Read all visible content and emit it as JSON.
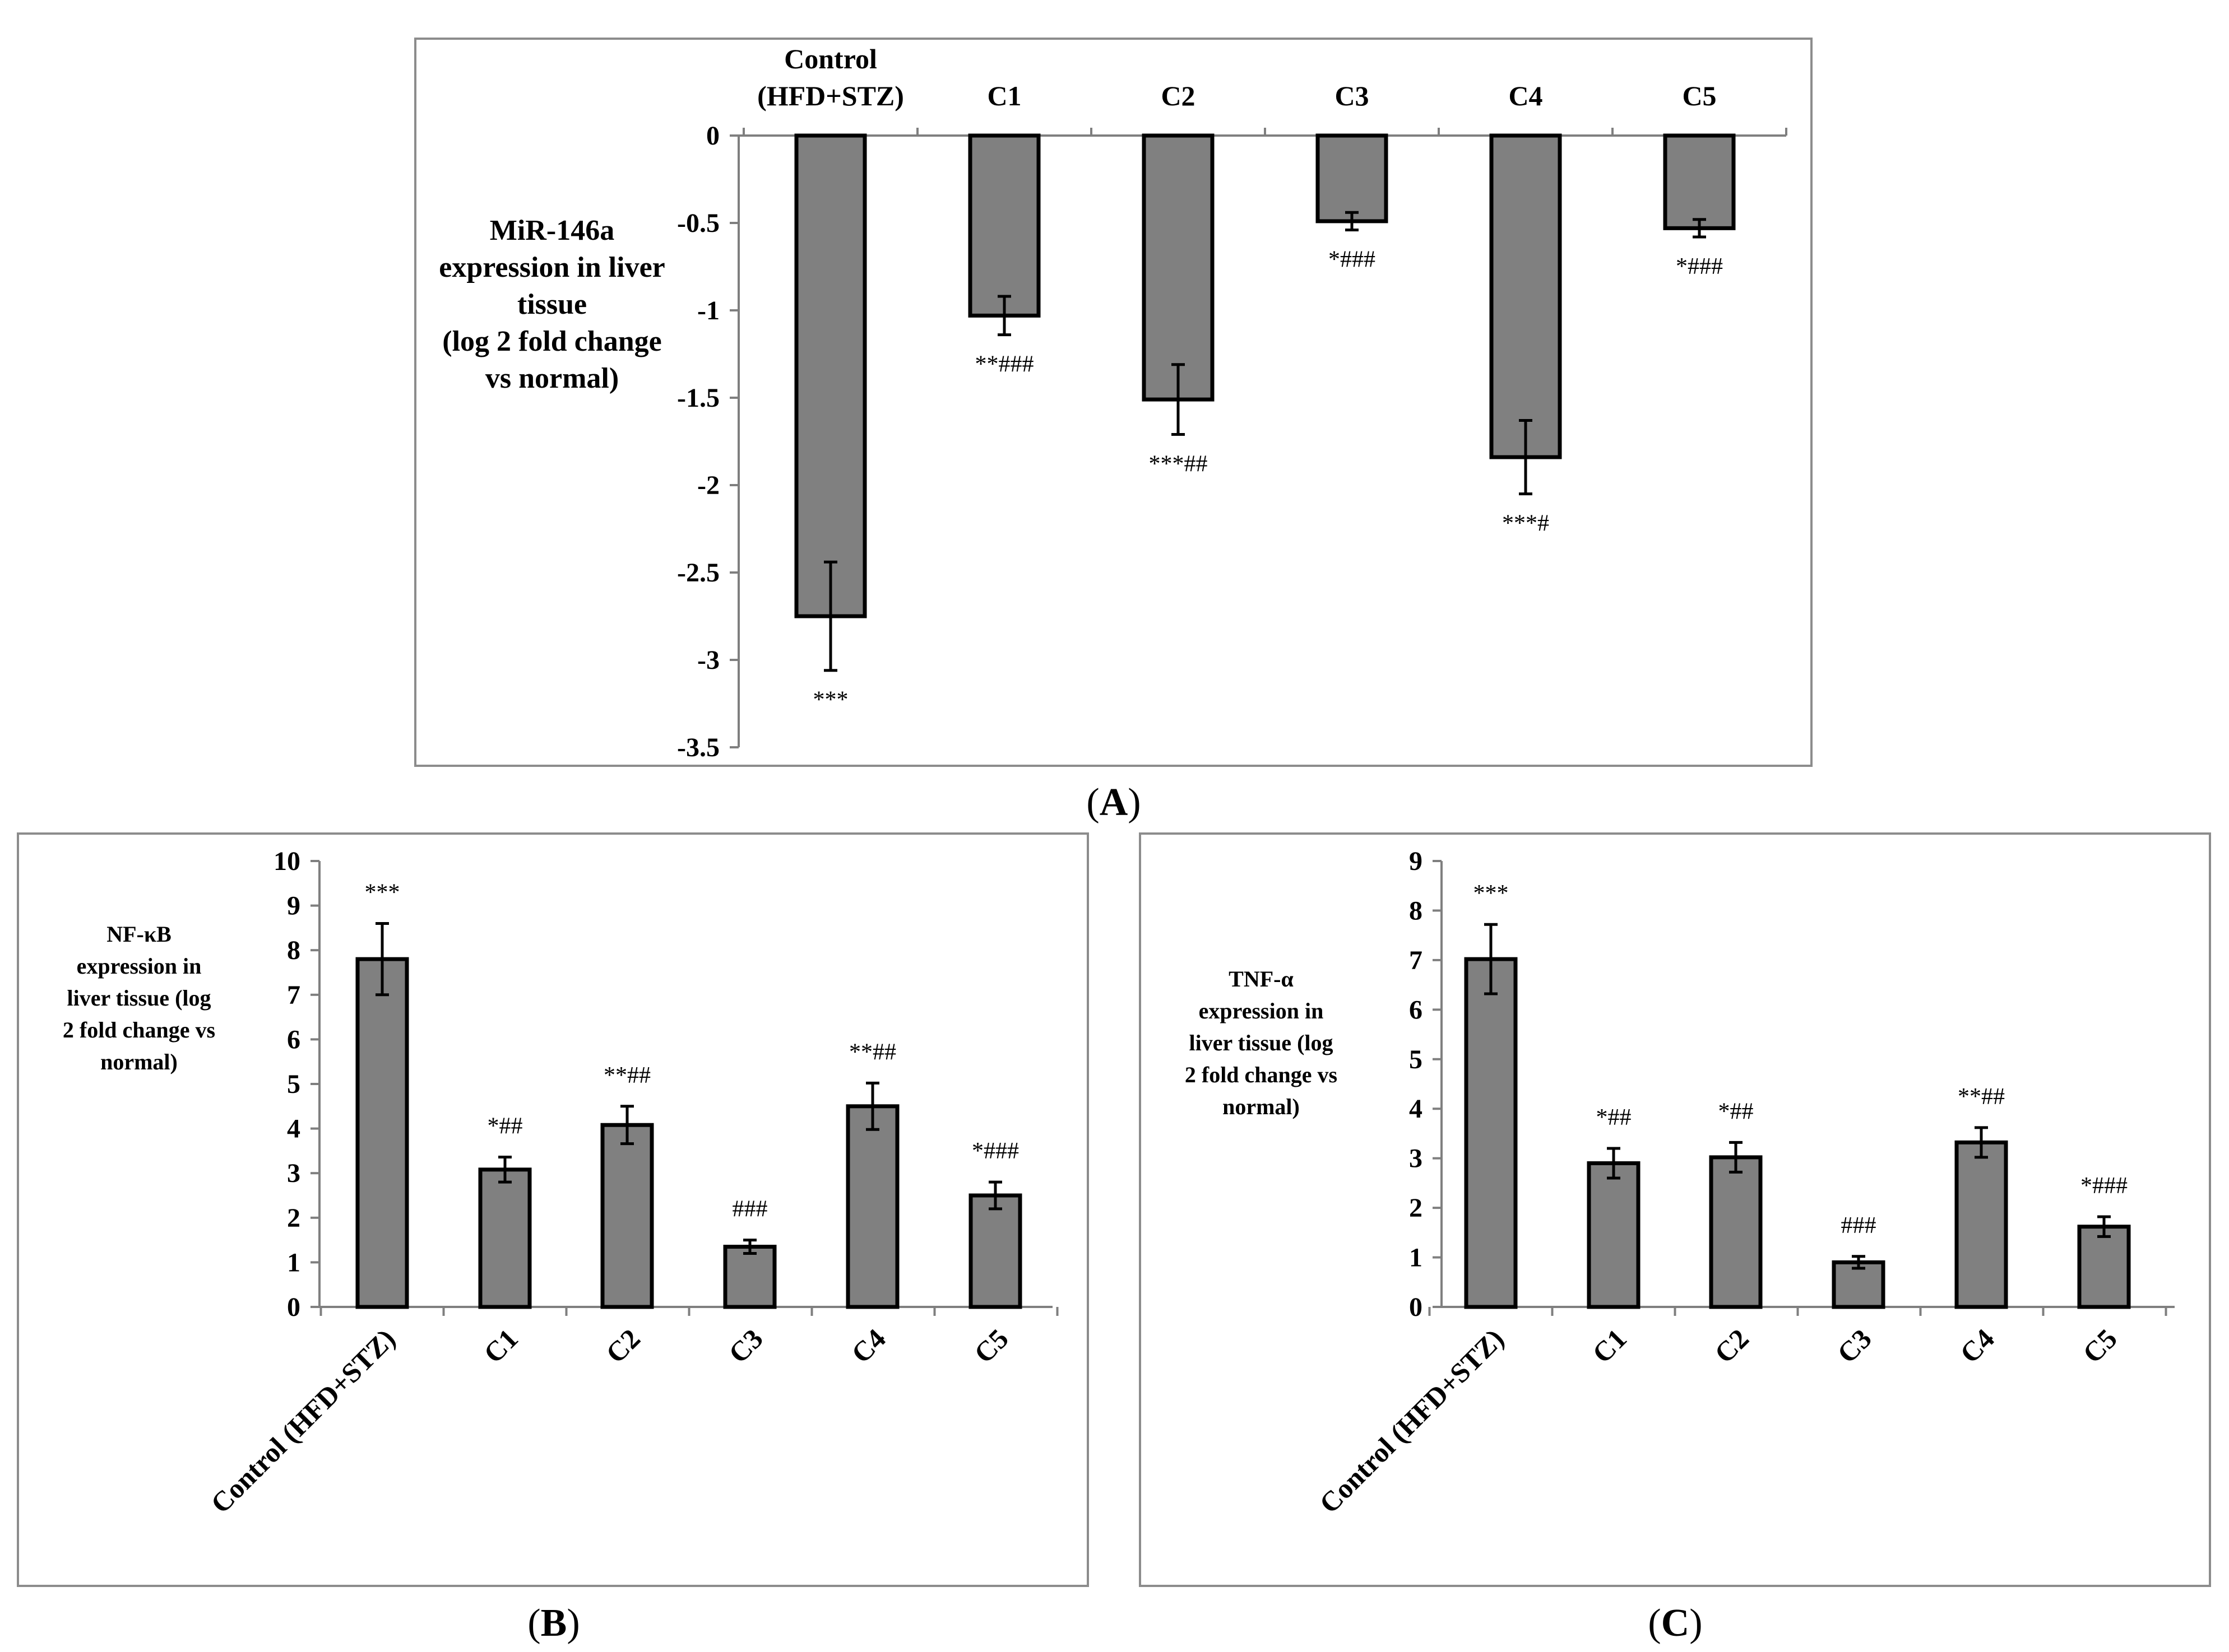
{
  "chart_data": [
    {
      "panel": "A",
      "type": "bar",
      "ylabel_lines": [
        "MiR-146a",
        "expression in liver",
        "tissue",
        "(log 2 fold change",
        "vs normal)"
      ],
      "category_lines": [
        [
          "Control",
          "(HFD+STZ)"
        ],
        [
          "C1"
        ],
        [
          "C2"
        ],
        [
          "C3"
        ],
        [
          "C4"
        ],
        [
          "C5"
        ]
      ],
      "values": [
        -2.75,
        -1.03,
        -1.51,
        -0.49,
        -1.84,
        -0.53
      ],
      "errors": [
        0.31,
        0.11,
        0.2,
        0.05,
        0.21,
        0.05
      ],
      "significance": [
        "***",
        "**###",
        "***##",
        "*###",
        "***#",
        "*###"
      ],
      "ylim": [
        -3.5,
        0
      ],
      "yticks": [
        "0",
        "-0.5",
        "-1",
        "-1.5",
        "-2",
        "-2.5",
        "-3",
        "-3.5"
      ]
    },
    {
      "panel": "B",
      "type": "bar",
      "ylabel_lines": [
        "NF-κB",
        "expression in",
        "liver tissue (log",
        "2 fold  change vs",
        "normal)"
      ],
      "categories": [
        "Control (HFD+STZ)",
        "C1",
        "C2",
        "C3",
        "C4",
        "C5"
      ],
      "values": [
        7.8,
        3.08,
        4.08,
        1.35,
        4.5,
        2.5
      ],
      "errors": [
        0.8,
        0.28,
        0.42,
        0.15,
        0.52,
        0.3
      ],
      "significance": [
        "***",
        "*##",
        "**##",
        "###",
        "**##",
        "*###"
      ],
      "ylim": [
        0,
        10
      ],
      "yticks": [
        "0",
        "1",
        "2",
        "3",
        "4",
        "5",
        "6",
        "7",
        "8",
        "9",
        "10"
      ]
    },
    {
      "panel": "C",
      "type": "bar",
      "ylabel_lines": [
        "TNF-α",
        "expression in",
        "liver tissue (log",
        "2 fold  change vs",
        "normal)"
      ],
      "categories": [
        "Control (HFD+STZ)",
        "C1",
        "C2",
        "C3",
        "C4",
        "C5"
      ],
      "values": [
        7.02,
        2.9,
        3.02,
        0.9,
        3.32,
        1.62
      ],
      "errors": [
        0.7,
        0.3,
        0.3,
        0.12,
        0.3,
        0.2
      ],
      "significance": [
        "***",
        "*##",
        "*##",
        "###",
        "**##",
        "*###"
      ],
      "ylim": [
        0,
        9
      ],
      "yticks": [
        "0",
        "1",
        "2",
        "3",
        "4",
        "5",
        "6",
        "7",
        "8",
        "9"
      ]
    }
  ],
  "panel_labels": {
    "a": "A",
    "b": "B",
    "c": "C"
  },
  "colors": {
    "bar_fill": "#808080",
    "bar_stroke": "#000000",
    "axis": "#7f7f7f",
    "frame": "#8c8c8c"
  }
}
